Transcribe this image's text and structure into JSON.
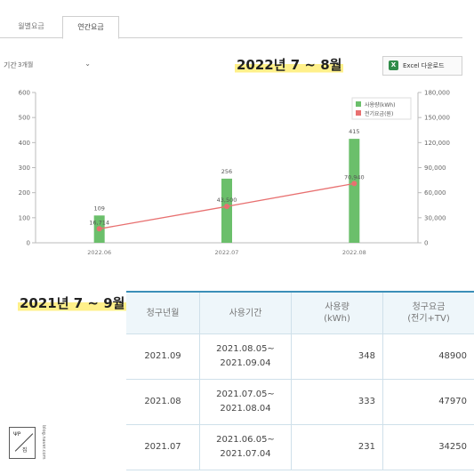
{
  "tabs": [
    {
      "label": "월별요금"
    },
    {
      "label": "연간요금"
    }
  ],
  "controls": {
    "period_label": "기간",
    "period_value": "3개월",
    "excel_label": "Excel 다운로드"
  },
  "chart_section": {
    "title": "2022년 7 ~ 8월"
  },
  "chart_data": {
    "type": "bar",
    "categories": [
      "2022.06",
      "2022.07",
      "2022.08"
    ],
    "series": [
      {
        "name": "사용량(kWh)",
        "type": "bar",
        "axis": "left",
        "values": [
          109,
          256,
          415
        ],
        "labels": [
          "109",
          "256",
          "415"
        ],
        "color": "#6bbf6b"
      },
      {
        "name": "전기요금(원)",
        "type": "line",
        "axis": "right",
        "values": [
          16714,
          43500,
          70940
        ],
        "labels": [
          "16,714",
          "43,500",
          "70,940"
        ],
        "color": "#e87070"
      }
    ],
    "y_left": {
      "min": 0,
      "max": 600,
      "ticks": [
        "0",
        "100",
        "200",
        "300",
        "400",
        "500",
        "600"
      ]
    },
    "y_right": {
      "min": 0,
      "max": 180000,
      "ticks": [
        "0",
        "30,000",
        "60,000",
        "90,000",
        "120,000",
        "150,000",
        "180,000"
      ]
    },
    "legend_position": "top-right"
  },
  "table_section": {
    "title": "2021년 7 ~ 9월",
    "headers": [
      {
        "line1": "청구년월",
        "line2": ""
      },
      {
        "line1": "사용기간",
        "line2": ""
      },
      {
        "line1": "사용량",
        "line2": "(kWh)"
      },
      {
        "line1": "청구요금",
        "line2": "(전기+TV)"
      }
    ],
    "rows": [
      {
        "month": "2021.09",
        "period_start": "2021.08.05~",
        "period_end": "2021.09.04",
        "usage": "348",
        "fee": "48900"
      },
      {
        "month": "2021.08",
        "period_start": "2021.07.05~",
        "period_end": "2021.08.04",
        "usage": "333",
        "fee": "47970"
      },
      {
        "month": "2021.07",
        "period_start": "2021.06.05~",
        "period_end": "2021.07.04",
        "usage": "231",
        "fee": "34250"
      }
    ]
  },
  "watermark": {
    "logo_top": "ΨΡ",
    "logo_bottom": "집",
    "side_text": "blog.naver.com"
  }
}
